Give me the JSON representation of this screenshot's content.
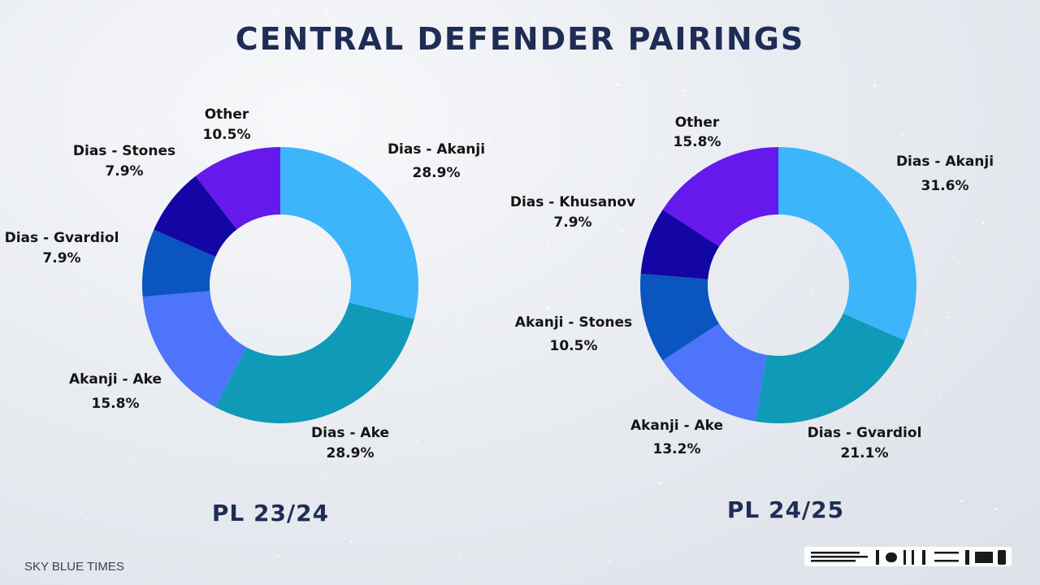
{
  "title": "CENTRAL DEFENDER PAIRINGS",
  "brand": "SKY BLUE TIMES",
  "chart_data": [
    {
      "type": "pie",
      "subtitle": "PL 23/24",
      "categories": [
        "Dias - Akanji",
        "Dias - Ake",
        "Akanji - Ake",
        "Dias - Gvardiol",
        "Dias - Stones",
        "Other"
      ],
      "values": [
        28.9,
        28.9,
        15.8,
        7.9,
        7.9,
        10.5
      ],
      "labels": [
        "28.9%",
        "28.9%",
        "15.8%",
        "7.9%",
        "7.9%",
        "10.5%"
      ],
      "colors": [
        "#3db5fb",
        "#0f9ab8",
        "#4d74fb",
        "#0a55bf",
        "#1406a4",
        "#6619ec"
      ]
    },
    {
      "type": "pie",
      "subtitle": "PL 24/25",
      "categories": [
        "Dias - Akanji",
        "Dias - Gvardiol",
        "Akanji - Ake",
        "Akanji - Stones",
        "Dias - Khusanov",
        "Other"
      ],
      "values": [
        31.6,
        21.1,
        13.2,
        10.5,
        7.9,
        15.8
      ],
      "labels": [
        "31.6%",
        "21.1%",
        "13.2%",
        "10.5%",
        "7.9%",
        "15.8%"
      ],
      "colors": [
        "#3db5fb",
        "#0f9ab8",
        "#4d74fb",
        "#0a55bf",
        "#1406a4",
        "#6619ec"
      ]
    }
  ]
}
